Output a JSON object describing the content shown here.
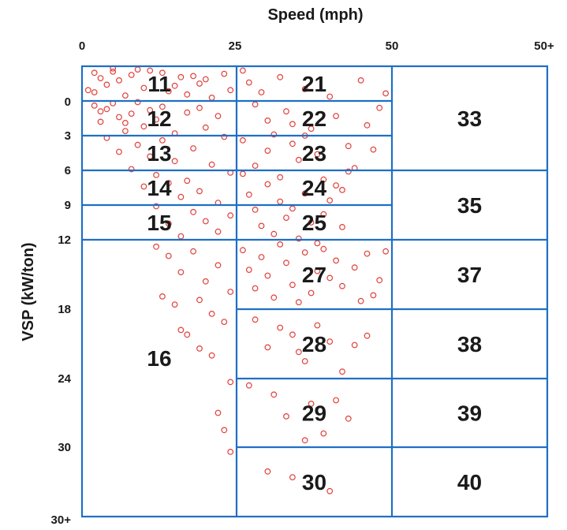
{
  "chart_data": {
    "type": "scatter",
    "title": "",
    "xlabel": "Speed (mph)",
    "ylabel": "VSP (kW/ton)",
    "x_ticks": [
      "0",
      "25",
      "50",
      "50+"
    ],
    "y_ticks": [
      "0",
      "3",
      "6",
      "9",
      "12",
      "18",
      "24",
      "30",
      "30+"
    ],
    "x_breaks": [
      0,
      25,
      50
    ],
    "y_breaks": [
      0,
      3,
      6,
      9,
      12,
      18,
      24,
      30
    ],
    "grid": "operating-mode bin boundaries",
    "bins": [
      {
        "label": "11",
        "speed": [
          0,
          25
        ],
        "vsp": [
          null,
          0
        ]
      },
      {
        "label": "12",
        "speed": [
          0,
          25
        ],
        "vsp": [
          0,
          3
        ]
      },
      {
        "label": "13",
        "speed": [
          0,
          25
        ],
        "vsp": [
          3,
          6
        ]
      },
      {
        "label": "14",
        "speed": [
          0,
          25
        ],
        "vsp": [
          6,
          9
        ]
      },
      {
        "label": "15",
        "speed": [
          0,
          25
        ],
        "vsp": [
          9,
          12
        ]
      },
      {
        "label": "16",
        "speed": [
          0,
          25
        ],
        "vsp": [
          12,
          null
        ]
      },
      {
        "label": "21",
        "speed": [
          25,
          50
        ],
        "vsp": [
          null,
          0
        ]
      },
      {
        "label": "22",
        "speed": [
          25,
          50
        ],
        "vsp": [
          0,
          3
        ]
      },
      {
        "label": "23",
        "speed": [
          25,
          50
        ],
        "vsp": [
          3,
          6
        ]
      },
      {
        "label": "24",
        "speed": [
          25,
          50
        ],
        "vsp": [
          6,
          9
        ]
      },
      {
        "label": "25",
        "speed": [
          25,
          50
        ],
        "vsp": [
          9,
          12
        ]
      },
      {
        "label": "27",
        "speed": [
          25,
          50
        ],
        "vsp": [
          12,
          18
        ]
      },
      {
        "label": "28",
        "speed": [
          25,
          50
        ],
        "vsp": [
          18,
          24
        ]
      },
      {
        "label": "29",
        "speed": [
          25,
          50
        ],
        "vsp": [
          24,
          30
        ]
      },
      {
        "label": "30",
        "speed": [
          25,
          50
        ],
        "vsp": [
          30,
          null
        ]
      },
      {
        "label": "33",
        "speed": [
          50,
          null
        ],
        "vsp": [
          null,
          6
        ]
      },
      {
        "label": "35",
        "speed": [
          50,
          null
        ],
        "vsp": [
          6,
          12
        ]
      },
      {
        "label": "37",
        "speed": [
          50,
          null
        ],
        "vsp": [
          12,
          18
        ]
      },
      {
        "label": "38",
        "speed": [
          50,
          null
        ],
        "vsp": [
          18,
          24
        ]
      },
      {
        "label": "39",
        "speed": [
          50,
          null
        ],
        "vsp": [
          24,
          30
        ]
      },
      {
        "label": "40",
        "speed": [
          50,
          null
        ],
        "vsp": [
          30,
          null
        ]
      }
    ],
    "series": [
      {
        "marker": "open circle",
        "color": "#e0403a",
        "points": [
          [
            1,
            -1.0
          ],
          [
            2,
            -0.8
          ],
          [
            2,
            0.4
          ],
          [
            3,
            -2.1
          ],
          [
            4,
            -1.5
          ],
          [
            3,
            0.9
          ],
          [
            5,
            -2.7
          ],
          [
            5,
            0.2
          ],
          [
            6,
            1.4
          ],
          [
            6,
            -1.9
          ],
          [
            7,
            -0.5
          ],
          [
            7,
            2.6
          ],
          [
            8,
            -2.4
          ],
          [
            8,
            1.1
          ],
          [
            9,
            0.1
          ],
          [
            9,
            3.8
          ],
          [
            10,
            -1.2
          ],
          [
            10,
            2.2
          ],
          [
            11,
            4.8
          ],
          [
            11,
            -2.8
          ],
          [
            12,
            1.6
          ],
          [
            12,
            6.4
          ],
          [
            13,
            0.5
          ],
          [
            13,
            3.4
          ],
          [
            14,
            7.1
          ],
          [
            14,
            -0.9
          ],
          [
            15,
            2.8
          ],
          [
            15,
            5.2
          ],
          [
            16,
            8.3
          ],
          [
            16,
            -2.2
          ],
          [
            17,
            1.0
          ],
          [
            17,
            6.9
          ],
          [
            18,
            4.1
          ],
          [
            18,
            9.6
          ],
          [
            19,
            -1.6
          ],
          [
            19,
            7.8
          ],
          [
            20,
            2.3
          ],
          [
            20,
            10.4
          ],
          [
            21,
            5.5
          ],
          [
            21,
            -0.3
          ],
          [
            22,
            8.8
          ],
          [
            22,
            11.3
          ],
          [
            23,
            3.1
          ],
          [
            23,
            -2.5
          ],
          [
            24,
            6.2
          ],
          [
            24,
            9.9
          ],
          [
            3,
            1.8
          ],
          [
            4,
            3.2
          ],
          [
            6,
            4.4
          ],
          [
            8,
            5.9
          ],
          [
            10,
            7.4
          ],
          [
            12,
            9.1
          ],
          [
            14,
            10.6
          ],
          [
            16,
            11.7
          ],
          [
            5,
            -3.0
          ],
          [
            9,
            -2.9
          ],
          [
            13,
            -2.6
          ],
          [
            18,
            -2.3
          ],
          [
            2,
            -2.6
          ],
          [
            4,
            0.7
          ],
          [
            7,
            1.9
          ],
          [
            11,
            0.8
          ],
          [
            15,
            -1.4
          ],
          [
            19,
            0.6
          ],
          [
            22,
            1.3
          ],
          [
            24,
            -1.0
          ],
          [
            20,
            -2.0
          ],
          [
            17,
            -0.6
          ],
          [
            12,
            12.6
          ],
          [
            14,
            13.4
          ],
          [
            16,
            14.8
          ],
          [
            18,
            13.0
          ],
          [
            20,
            15.6
          ],
          [
            22,
            14.2
          ],
          [
            24,
            16.5
          ],
          [
            13,
            16.9
          ],
          [
            15,
            17.6
          ],
          [
            19,
            17.2
          ],
          [
            21,
            18.4
          ],
          [
            23,
            19.1
          ],
          [
            17,
            20.2
          ],
          [
            19,
            21.4
          ],
          [
            21,
            22.0
          ],
          [
            16,
            19.8
          ],
          [
            24,
            24.3
          ],
          [
            22,
            27.0
          ],
          [
            23,
            28.5
          ],
          [
            24,
            30.4
          ],
          [
            26,
            -2.8
          ],
          [
            27,
            -1.7
          ],
          [
            28,
            0.3
          ],
          [
            29,
            -0.8
          ],
          [
            30,
            1.7
          ],
          [
            31,
            2.9
          ],
          [
            32,
            -2.2
          ],
          [
            33,
            0.9
          ],
          [
            34,
            3.7
          ],
          [
            35,
            5.1
          ],
          [
            36,
            -1.1
          ],
          [
            37,
            2.4
          ],
          [
            38,
            4.6
          ],
          [
            39,
            6.8
          ],
          [
            40,
            -0.4
          ],
          [
            41,
            1.3
          ],
          [
            42,
            7.7
          ],
          [
            43,
            3.9
          ],
          [
            44,
            5.8
          ],
          [
            45,
            -1.9
          ],
          [
            46,
            2.1
          ],
          [
            47,
            4.2
          ],
          [
            48,
            0.6
          ],
          [
            49,
            -0.7
          ],
          [
            26,
            6.3
          ],
          [
            27,
            8.1
          ],
          [
            28,
            9.4
          ],
          [
            29,
            10.8
          ],
          [
            30,
            7.2
          ],
          [
            31,
            11.5
          ],
          [
            32,
            8.7
          ],
          [
            33,
            10.1
          ],
          [
            34,
            9.3
          ],
          [
            35,
            11.9
          ],
          [
            36,
            8.0
          ],
          [
            37,
            10.5
          ],
          [
            38,
            12.3
          ],
          [
            39,
            9.8
          ],
          [
            40,
            8.6
          ],
          [
            41,
            7.3
          ],
          [
            42,
            10.9
          ],
          [
            43,
            6.1
          ],
          [
            26,
            3.4
          ],
          [
            28,
            5.6
          ],
          [
            30,
            4.3
          ],
          [
            32,
            6.6
          ],
          [
            34,
            2.0
          ],
          [
            36,
            3.0
          ],
          [
            26,
            12.9
          ],
          [
            27,
            14.6
          ],
          [
            28,
            16.2
          ],
          [
            29,
            13.5
          ],
          [
            30,
            15.1
          ],
          [
            31,
            17.0
          ],
          [
            32,
            12.4
          ],
          [
            33,
            14.0
          ],
          [
            34,
            15.9
          ],
          [
            35,
            17.4
          ],
          [
            36,
            13.1
          ],
          [
            37,
            16.6
          ],
          [
            38,
            14.7
          ],
          [
            39,
            12.8
          ],
          [
            40,
            15.3
          ],
          [
            41,
            13.8
          ],
          [
            42,
            16.0
          ],
          [
            44,
            14.4
          ],
          [
            46,
            13.2
          ],
          [
            48,
            15.5
          ],
          [
            49,
            13.0
          ],
          [
            45,
            17.3
          ],
          [
            47,
            16.8
          ],
          [
            28,
            18.9
          ],
          [
            30,
            21.3
          ],
          [
            32,
            19.6
          ],
          [
            34,
            20.2
          ],
          [
            36,
            22.5
          ],
          [
            38,
            19.4
          ],
          [
            40,
            20.8
          ],
          [
            42,
            23.4
          ],
          [
            44,
            21.1
          ],
          [
            46,
            20.3
          ],
          [
            35,
            21.7
          ],
          [
            27,
            24.6
          ],
          [
            31,
            25.4
          ],
          [
            33,
            27.3
          ],
          [
            37,
            26.2
          ],
          [
            39,
            28.8
          ],
          [
            43,
            27.5
          ],
          [
            41,
            25.9
          ],
          [
            36,
            29.4
          ],
          [
            30,
            32.1
          ],
          [
            34,
            32.6
          ],
          [
            40,
            33.8
          ]
        ]
      }
    ]
  }
}
